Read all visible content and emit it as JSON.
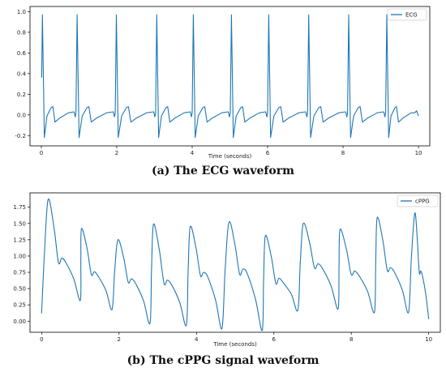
{
  "chart_data": [
    {
      "type": "line",
      "caption": "(a) The ECG waveform",
      "xlabel": "Time (seconds)",
      "ylabel": "",
      "xlim": [
        -0.3,
        10.3
      ],
      "ylim": [
        -0.3,
        1.05
      ],
      "xticks": [
        0,
        2,
        4,
        6,
        8,
        10
      ],
      "yticks": [
        -0.2,
        0.0,
        0.2,
        0.4,
        0.6,
        0.8,
        1.0
      ],
      "ytick_labels": [
        "-0.2",
        "0.0",
        "0.2",
        "0.4",
        "0.6",
        "0.8",
        "1.0"
      ],
      "legend_position": "top-right",
      "grid": false,
      "color": "#1f77b4",
      "series": [
        {
          "name": "ECG",
          "start_value": 0.36,
          "beat_times": [
            0.03,
            0.95,
            1.99,
            3.06,
            4.03,
            5.04,
            6.03,
            7.09,
            8.15,
            9.16
          ],
          "r_peak": 0.97,
          "s_trough": -0.22,
          "t_wave": 0.08,
          "baseline": 0.02,
          "end_time": 10.0
        }
      ]
    },
    {
      "type": "line",
      "caption": "(b) The cPPG signal waveform",
      "xlabel": "Time (seconds)",
      "ylabel": "",
      "xlim": [
        -0.3,
        10.3
      ],
      "ylim": [
        -0.17,
        1.97
      ],
      "xticks": [
        0,
        2,
        4,
        6,
        8,
        10
      ],
      "yticks": [
        0.0,
        0.25,
        0.5,
        0.75,
        1.0,
        1.25,
        1.5,
        1.75
      ],
      "ytick_labels": [
        "0.00",
        "0.25",
        "0.50",
        "0.75",
        "1.00",
        "1.25",
        "1.50",
        "1.75"
      ],
      "legend_position": "top-right",
      "grid": false,
      "color": "#1f77b4",
      "series": [
        {
          "name": "cPPG",
          "start_value": 0.12,
          "pulses": [
            {
              "peak_time": 0.17,
              "peak": 1.87,
              "notch": 0.9,
              "dicrotic": 0.97,
              "trough_time": 1.0,
              "trough": 0.32
            },
            {
              "peak_time": 1.03,
              "peak": 1.42,
              "notch": 0.72,
              "dicrotic": 0.76,
              "trough_time": 1.82,
              "trough": 0.18
            },
            {
              "peak_time": 1.97,
              "peak": 1.25,
              "notch": 0.6,
              "dicrotic": 0.65,
              "trough_time": 2.8,
              "trough": -0.03
            },
            {
              "peak_time": 2.89,
              "peak": 1.49,
              "notch": 0.58,
              "dicrotic": 0.63,
              "trough_time": 3.74,
              "trough": -0.06
            },
            {
              "peak_time": 3.84,
              "peak": 1.45,
              "notch": 0.7,
              "dicrotic": 0.75,
              "trough_time": 4.66,
              "trough": -0.11
            },
            {
              "peak_time": 4.84,
              "peak": 1.52,
              "notch": 0.72,
              "dicrotic": 0.8,
              "trough_time": 5.7,
              "trough": -0.14
            },
            {
              "peak_time": 5.78,
              "peak": 1.31,
              "notch": 0.58,
              "dicrotic": 0.66,
              "trough_time": 6.62,
              "trough": 0.17
            },
            {
              "peak_time": 6.76,
              "peak": 1.5,
              "notch": 0.82,
              "dicrotic": 0.88,
              "trough_time": 7.66,
              "trough": 0.19
            },
            {
              "peak_time": 7.71,
              "peak": 1.41,
              "notch": 0.72,
              "dicrotic": 0.77,
              "trough_time": 8.6,
              "trough": 0.14
            },
            {
              "peak_time": 8.67,
              "peak": 1.59,
              "notch": 0.78,
              "dicrotic": 0.82,
              "trough_time": 9.48,
              "trough": 0.14
            },
            {
              "peak_time": 9.64,
              "peak": 1.66,
              "notch": 0.75,
              "dicrotic": 0.77,
              "trough_time": 10.0,
              "trough": 0.03
            }
          ]
        }
      ]
    }
  ]
}
